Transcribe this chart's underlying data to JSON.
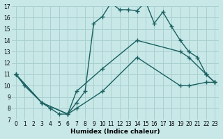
{
  "xlabel": "Humidex (Indice chaleur)",
  "xlim": [
    -0.5,
    23.5
  ],
  "ylim": [
    7,
    17
  ],
  "yticks": [
    7,
    8,
    9,
    10,
    11,
    12,
    13,
    14,
    15,
    16,
    17
  ],
  "xticks": [
    0,
    1,
    2,
    3,
    4,
    5,
    6,
    7,
    8,
    9,
    10,
    11,
    12,
    13,
    14,
    15,
    16,
    17,
    18,
    19,
    20,
    21,
    22,
    23
  ],
  "bg_color": "#c8e8e8",
  "grid_color": "#aacfcf",
  "line_color": "#1a6060",
  "line1_x": [
    0,
    1,
    3,
    4,
    5,
    6,
    7,
    8,
    9,
    10,
    11,
    12,
    13,
    14,
    15,
    16,
    17,
    18,
    19,
    20,
    21,
    22,
    23
  ],
  "line1_y": [
    11,
    10,
    8.5,
    8,
    7.5,
    7.5,
    8.5,
    9.5,
    15.5,
    16.1,
    17.3,
    16.7,
    16.7,
    16.6,
    17.4,
    15.5,
    16.5,
    15.2,
    14.0,
    13.0,
    12.5,
    11.0,
    10.3
  ],
  "line2_x": [
    0,
    3,
    6,
    7,
    10,
    14,
    19,
    20,
    22,
    23
  ],
  "line2_y": [
    11,
    8.5,
    7.5,
    9.5,
    11.5,
    14.0,
    13.0,
    12.5,
    11.0,
    10.3
  ],
  "line3_x": [
    0,
    3,
    6,
    7,
    10,
    14,
    19,
    20,
    22,
    23
  ],
  "line3_y": [
    11,
    8.5,
    7.5,
    8.0,
    9.5,
    12.5,
    10.0,
    10.0,
    10.3,
    10.3
  ]
}
